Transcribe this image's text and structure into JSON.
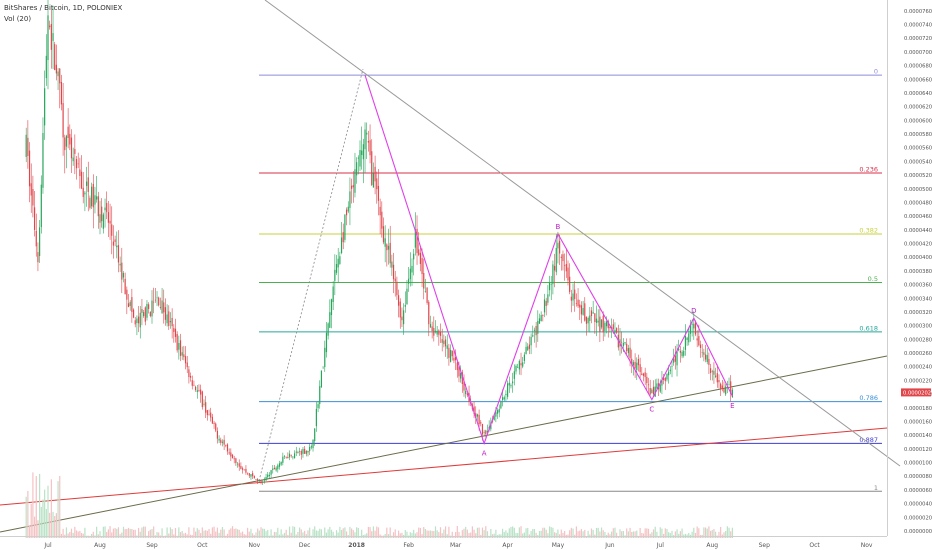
{
  "header": {
    "symbol_line": "BitShares / Bitcoin, 1D, POLONIEX",
    "volume_line": "Vol (20)"
  },
  "chart_data": {
    "type": "candlestick",
    "title": "BitShares / Bitcoin, 1D, POLONIEX",
    "x_tick_labels": [
      "Jul",
      "Aug",
      "Sep",
      "Oct",
      "Nov",
      "Dec",
      "2018",
      "Feb",
      "Mar",
      "Apr",
      "May",
      "Jun",
      "Jul",
      "Aug",
      "Sep",
      "Oct",
      "Nov"
    ],
    "y_tick_labels": [
      "0.00007600",
      "0.00007400",
      "0.00007200",
      "0.00007000",
      "0.00006800",
      "0.00006600",
      "0.00006400",
      "0.00006200",
      "0.00006000",
      "0.00005800",
      "0.00005600",
      "0.00005400",
      "0.00005200",
      "0.00005000",
      "0.00004800",
      "0.00004600",
      "0.00004400",
      "0.00004200",
      "0.00004000",
      "0.00003800",
      "0.00003600",
      "0.00003400",
      "0.00003200",
      "0.00003000",
      "0.00002800",
      "0.00002600",
      "0.00002400",
      "0.00002200",
      "0.00002000",
      "0.00001800",
      "0.00001600",
      "0.00001400",
      "0.00001200",
      "0.00001000",
      "0.00000800",
      "0.00000600",
      "0.00000400",
      "0.00000200",
      "0.00000000"
    ],
    "ylim": [
      0.0,
      7.7e-05
    ],
    "current_price_label": "0.00002025",
    "fib_levels": [
      {
        "label": "0",
        "price": 6.66e-05,
        "color": "#8c8cd9"
      },
      {
        "label": "0.236",
        "price": 5.23e-05,
        "color": "#d9304a"
      },
      {
        "label": "0.382",
        "price": 4.34e-05,
        "color": "#c8d23c"
      },
      {
        "label": "0.5",
        "price": 3.63e-05,
        "color": "#4caf50"
      },
      {
        "label": "0.618",
        "price": 2.91e-05,
        "color": "#26a69a"
      },
      {
        "label": "0.786",
        "price": 1.89e-05,
        "color": "#3b8fd6"
      },
      {
        "label": "0.887",
        "price": 1.28e-05,
        "color": "#3d3dd6"
      },
      {
        "label": "1",
        "price": 5.8e-06,
        "color": "#888888"
      }
    ],
    "pattern_points": [
      {
        "label": "",
        "date": "2018-01-06",
        "price": 6.66e-05
      },
      {
        "label": "A",
        "date": "2018-03-18",
        "price": 1.28e-05
      },
      {
        "label": "B",
        "date": "2018-05-01",
        "price": 4.34e-05
      },
      {
        "label": "C",
        "date": "2018-06-26",
        "price": 1.92e-05
      },
      {
        "label": "D",
        "date": "2018-07-21",
        "price": 3.11e-05
      },
      {
        "label": "E",
        "date": "2018-08-13",
        "price": 1.97e-05
      }
    ],
    "annotation_labels": [
      "A",
      "B",
      "C",
      "D",
      "E"
    ]
  }
}
